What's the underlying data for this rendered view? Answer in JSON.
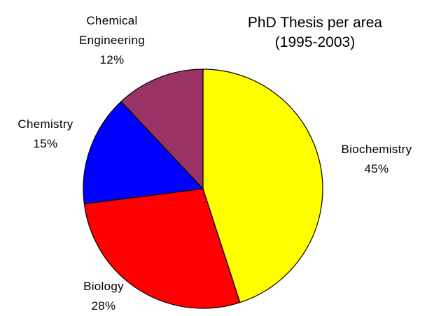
{
  "chart_data": {
    "type": "pie",
    "title": "PhD Thesis per area",
    "subtitle": "(1995-2003)",
    "categories": [
      "Biochemistry",
      "Biology",
      "Chemistry",
      "Chemical Engineering"
    ],
    "values": [
      45,
      28,
      15,
      12
    ],
    "value_labels": [
      "45%",
      "28%",
      "15%",
      "12%"
    ],
    "colors": [
      "#ffff00",
      "#ff0000",
      "#0000ff",
      "#993366"
    ]
  }
}
